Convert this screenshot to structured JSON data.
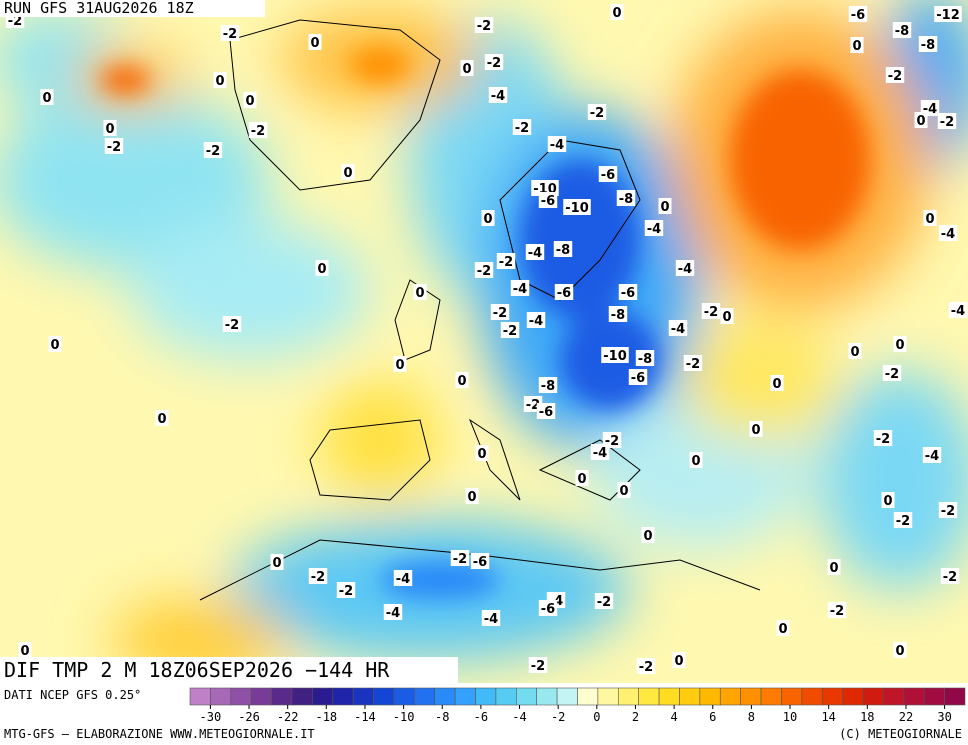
{
  "header": {
    "title": "RUN GFS 31AUG2026 18Z"
  },
  "footer": {
    "title": "DIF TMP 2 M 18Z06SEP2026 −144 HR",
    "source": "DATI NCEP GFS 0.25°",
    "credit": "MTG-GFS — ELABORAZIONE WWW.METEOGIORNALE.IT",
    "copyright": "(C) METEOGIORNALE"
  },
  "colorbar": {
    "colors": [
      "#c080c8",
      "#a868b8",
      "#9050a8",
      "#783c98",
      "#5a2a8a",
      "#402080",
      "#2a1c90",
      "#2024a8",
      "#1a34c0",
      "#1446d4",
      "#1a5ce4",
      "#2272f0",
      "#2a8af8",
      "#34a2fc",
      "#42baf8",
      "#56ccf2",
      "#74dcf0",
      "#98e8f0",
      "#c4f4f4",
      "#ffffd0",
      "#fff8a0",
      "#fff070",
      "#ffe840",
      "#ffdc20",
      "#ffcc10",
      "#ffb800",
      "#ffa400",
      "#ff9000",
      "#ff7c00",
      "#f86400",
      "#f04c00",
      "#e83800",
      "#e02800",
      "#d01c10",
      "#c01428",
      "#b01038",
      "#a00c40",
      "#900848"
    ],
    "ticks": [
      -30,
      -26,
      -22,
      -18,
      -14,
      -10,
      -8,
      -6,
      -4,
      -2,
      0,
      2,
      4,
      6,
      8,
      10,
      14,
      18,
      22,
      30
    ]
  },
  "map_labels": [
    "-2",
    "-2",
    "0",
    "-2",
    "0",
    "-6",
    "-12",
    "-8",
    "0",
    "-8",
    "0",
    "0",
    "0",
    "-2",
    "-4",
    "0",
    "-2",
    "0",
    "-2",
    "-2",
    "-2",
    "-2",
    "-4",
    "-2",
    "-4",
    "0",
    "-2",
    "0",
    "-10",
    "-6",
    "-6",
    "-10",
    "-8",
    "0",
    "-4",
    "0",
    "0",
    "-4",
    "-4",
    "-8",
    "-2",
    "-2",
    "0",
    "-4",
    "0",
    "-4",
    "-6",
    "-6",
    "-2",
    "-2",
    "-2",
    "-4",
    "-8",
    "-4",
    "-2",
    "0",
    "-4",
    "0",
    "-10",
    "-8",
    "-2",
    "0",
    "0",
    "0",
    "0",
    "-6",
    "-8",
    "-2",
    "0",
    "-2",
    "-6",
    "0",
    "0",
    "-2",
    "-2",
    "-4",
    "-4",
    "0",
    "0",
    "0",
    "0",
    "0",
    "0",
    "-2",
    "-2",
    "0",
    "-2",
    "-6",
    "0",
    "-2",
    "-4",
    "0",
    "-2",
    "-2",
    "-4",
    "-6",
    "-2",
    "-4",
    "-4",
    "-2",
    "0",
    "0",
    "0",
    "-2",
    "-2",
    "0"
  ]
}
